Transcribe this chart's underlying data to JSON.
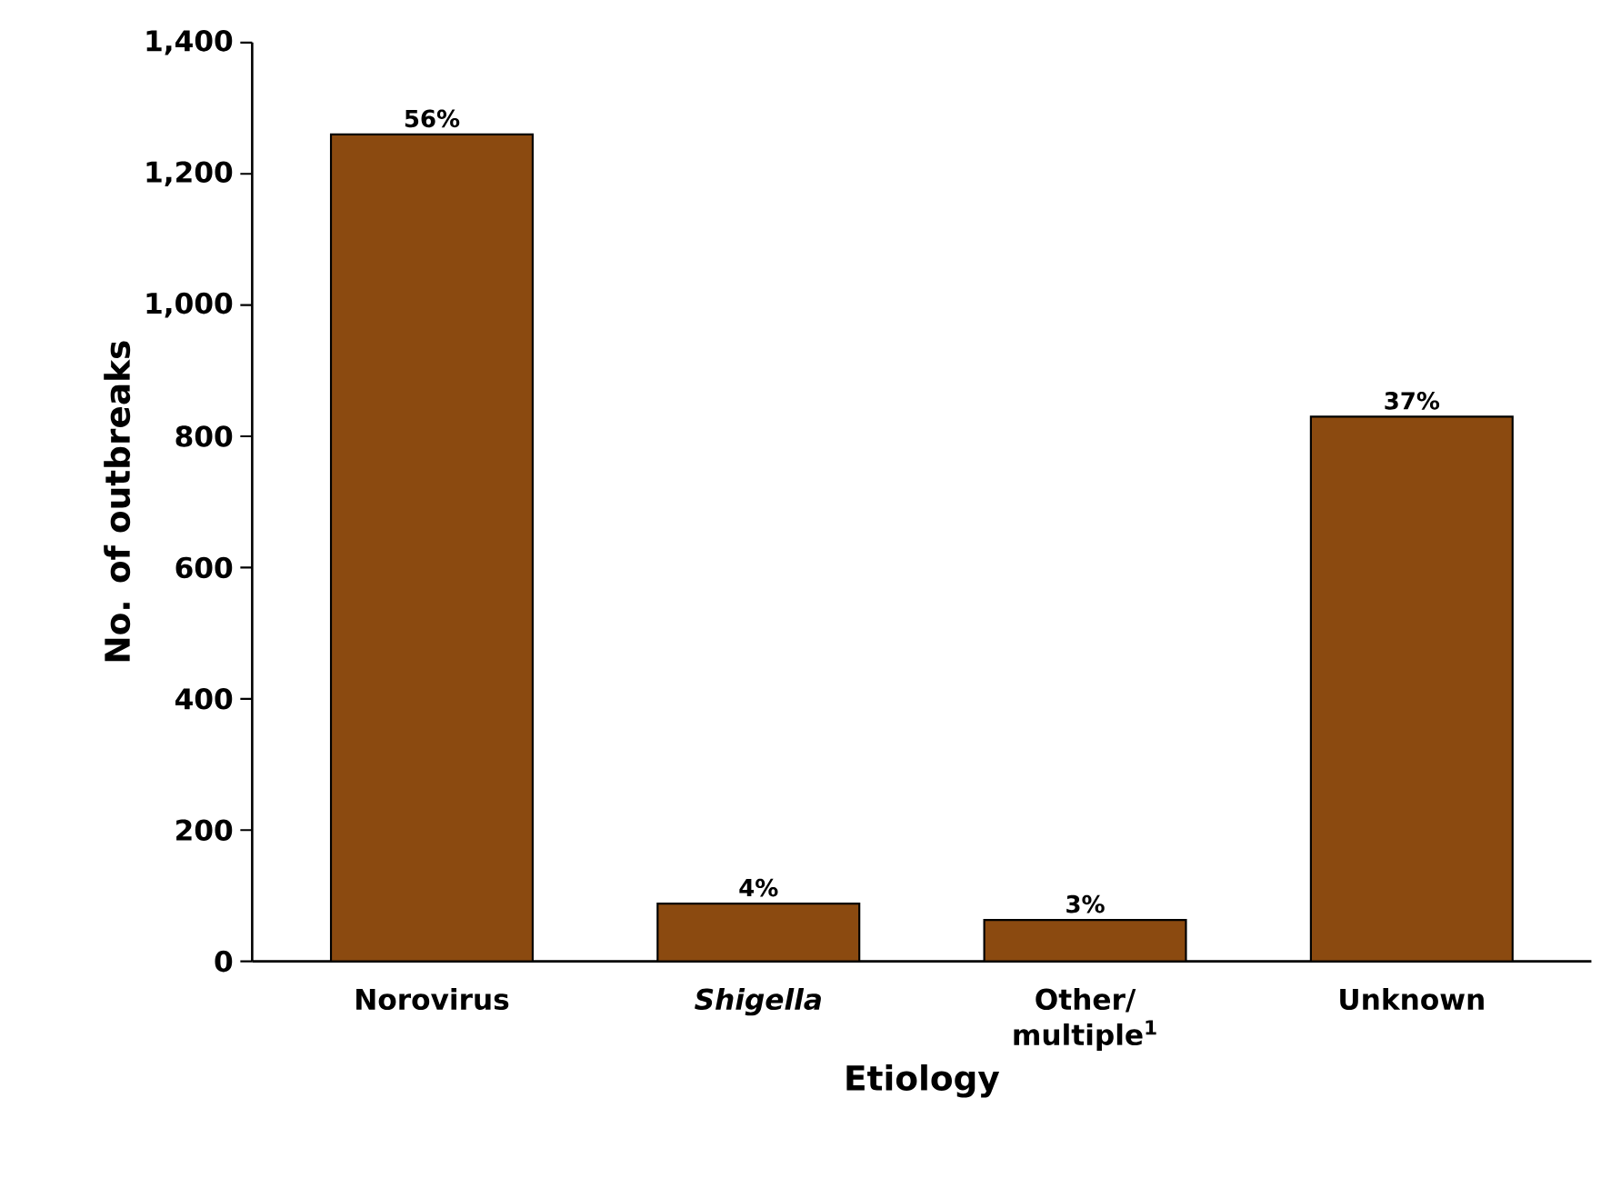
{
  "chart_data": {
    "type": "bar",
    "xlabel": "Etiology",
    "ylabel": "No. of outbreaks",
    "categories": [
      "Norovirus",
      "*Shigella*",
      "Other/ multiple$^{1}$",
      "Unknown"
    ],
    "values": [
      1260,
      88,
      63,
      830
    ],
    "annotations": [
      {
        "text": "56%",
        "x": "Norovirus",
        "y": 1260
      },
      {
        "text": "4%",
        "x": "*Shigella*",
        "y": 88
      },
      {
        "text": "3%",
        "x": "Other/ multiple$^{1}$",
        "y": 63
      },
      {
        "text": "37%",
        "x": "Unknown",
        "y": 830
      }
    ],
    "color": "#8b4a10",
    "ylim": [
      0,
      1400
    ],
    "yticks": [
      0,
      200,
      400,
      600,
      800,
      {
        "value": 1000,
        "label": "1,000"
      },
      {
        "value": 1200,
        "label": "1,200"
      },
      {
        "value": 1400,
        "label": "1,400"
      }
    ],
    "grid": false
  }
}
